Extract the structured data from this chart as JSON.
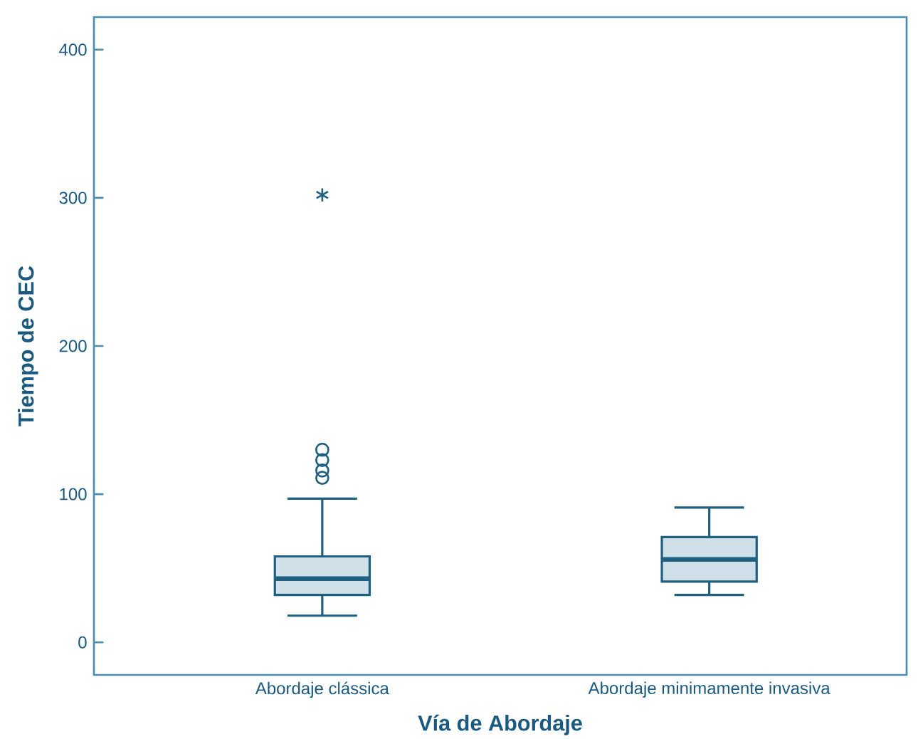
{
  "chart_data": {
    "type": "box",
    "xlabel": "Vía de Abordaje",
    "ylabel": "Tiempo de CEC",
    "categories": [
      "Abordaje clássica",
      "Abordaje minimamente invasiva"
    ],
    "boxes": [
      {
        "low": 18,
        "q1": 32,
        "median": 43,
        "q3": 58,
        "high": 97,
        "outliers": [
          111,
          116,
          123,
          130,
          302
        ]
      },
      {
        "low": 32,
        "q1": 41,
        "median": 56,
        "q3": 71,
        "high": 91
      }
    ],
    "ylim": [
      -22,
      422
    ],
    "yticks": [
      0,
      100,
      200,
      300,
      400
    ]
  }
}
